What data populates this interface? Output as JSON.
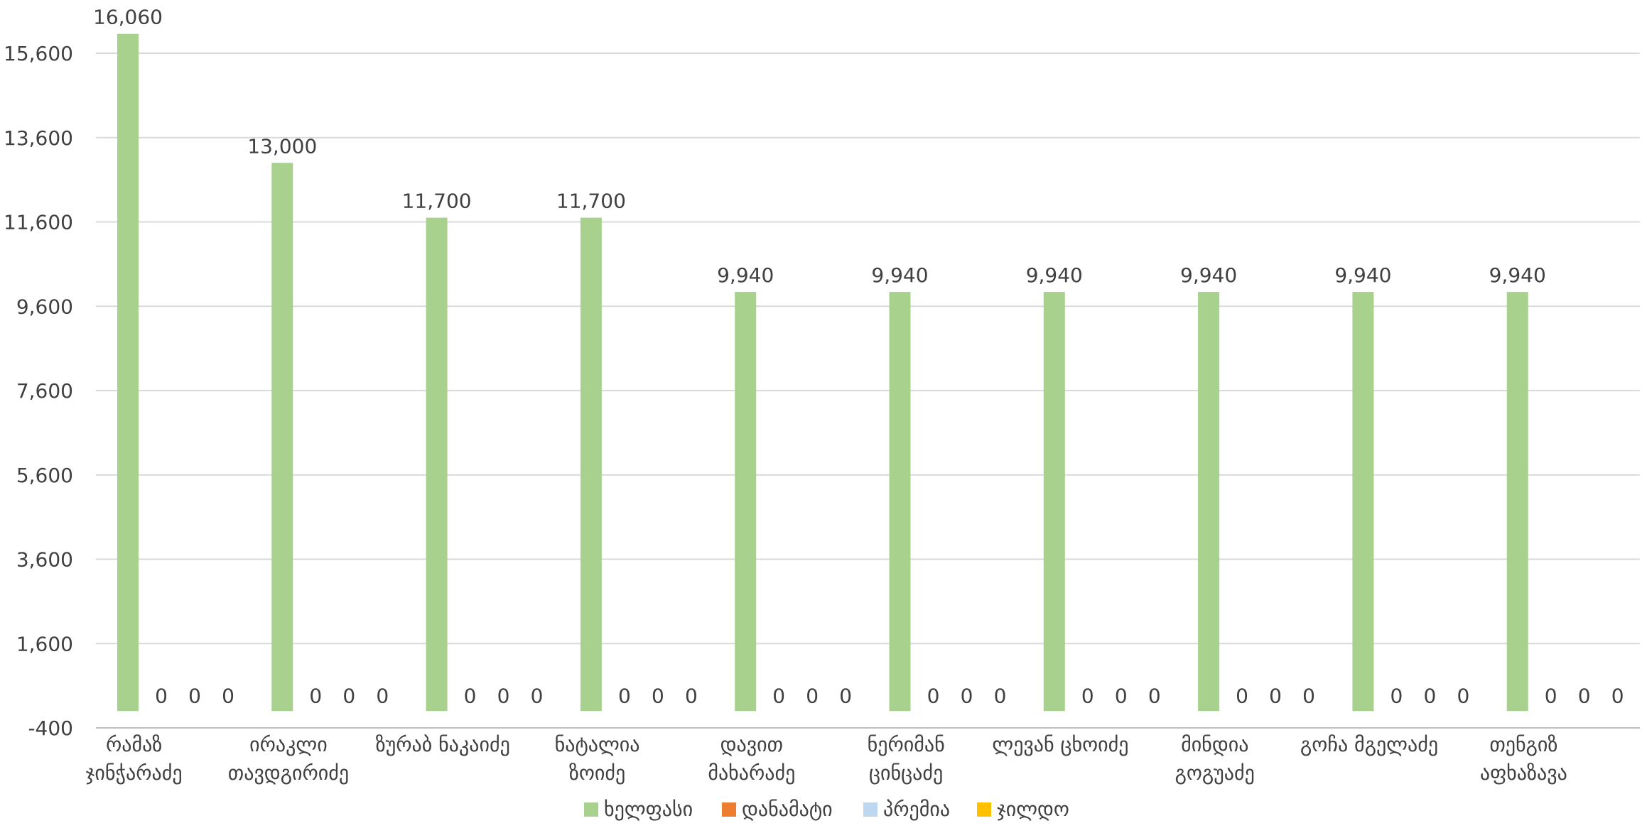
{
  "chart_data": {
    "type": "bar",
    "categories": [
      [
        "რამაზ",
        "ჯინჭარაძე"
      ],
      [
        "ირაკლი",
        "თავდგირიძე"
      ],
      [
        "ზურაბ ნაკაიძე"
      ],
      [
        "ნატალია",
        "ზოიძე"
      ],
      [
        "დავით",
        "მახარაძე"
      ],
      [
        "ნერიმან",
        "ცინცაძე"
      ],
      [
        "ლევან ცხოიძე"
      ],
      [
        "მინდია",
        "გოგუაძე"
      ],
      [
        "გოჩა მგელაძე"
      ],
      [
        "თენგიზ",
        "აფხაზავა"
      ]
    ],
    "series": [
      {
        "name": "ხელფასი",
        "color": "#a9d18e",
        "values": [
          16060,
          13000,
          11700,
          11700,
          9940,
          9940,
          9940,
          9940,
          9940,
          9940
        ],
        "labels": [
          "16,060",
          "13,000",
          "11,700",
          "11,700",
          "9,940",
          "9,940",
          "9,940",
          "9,940",
          "9,940",
          "9,940"
        ]
      },
      {
        "name": "დანამატი",
        "color": "#ed7d31",
        "values": [
          0,
          0,
          0,
          0,
          0,
          0,
          0,
          0,
          0,
          0
        ],
        "labels": [
          "0",
          "0",
          "0",
          "0",
          "0",
          "0",
          "0",
          "0",
          "0",
          "0"
        ]
      },
      {
        "name": "პრემია",
        "color": "#bdd7ee",
        "values": [
          0,
          0,
          0,
          0,
          0,
          0,
          0,
          0,
          0,
          0
        ],
        "labels": [
          "0",
          "0",
          "0",
          "0",
          "0",
          "0",
          "0",
          "0",
          "0",
          "0"
        ]
      },
      {
        "name": "ჯილდო",
        "color": "#ffc000",
        "values": [
          0,
          0,
          0,
          0,
          0,
          0,
          0,
          0,
          0,
          0
        ],
        "labels": [
          "0",
          "0",
          "0",
          "0",
          "0",
          "0",
          "0",
          "0",
          "0",
          "0"
        ]
      }
    ],
    "ylim": [
      -400,
      16060
    ],
    "yticks": [
      -400,
      1600,
      3600,
      5600,
      7600,
      9600,
      11600,
      13600,
      15600
    ],
    "ytick_labels": [
      "-400",
      "1,600",
      "3,600",
      "5,600",
      "7,600",
      "9,600",
      "11,600",
      "13,600",
      "15,600"
    ],
    "grid": true,
    "legend_position": "bottom",
    "title": "",
    "xlabel": "",
    "ylabel": ""
  }
}
